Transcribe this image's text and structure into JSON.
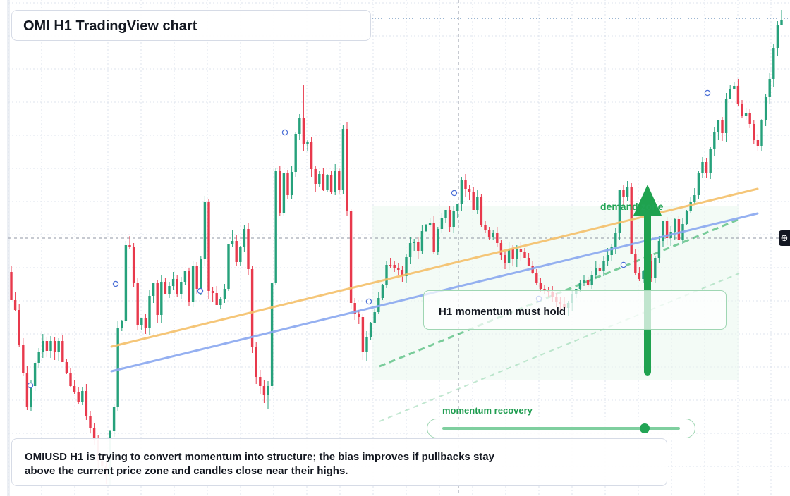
{
  "header": {
    "title": "OMI H1 TradingView chart"
  },
  "note": {
    "text": "OMIUSD H1 is trying to convert momentum into structure; the bias improves if pullbacks stay above the current price zone and candles close near their highs."
  },
  "callout": {
    "text": "H1 momentum must hold"
  },
  "zone": {
    "label": "demand zone"
  },
  "slider": {
    "label": "momentum recovery",
    "value": 0.88
  },
  "toolbar": {
    "crosshair_icon": "crosshair-plus-icon"
  },
  "colors": {
    "bull": "#26a17b",
    "bear": "#e8394c",
    "ma_fast": "#f5c06a",
    "ma_slow": "#8aa8f0",
    "accent_green": "#22a455",
    "zone_fill": "#eaf8ee"
  },
  "chart_data": {
    "type": "candlestick",
    "symbol": "OMIUSD",
    "timeframe": "H1",
    "grid": true,
    "ohlc": [
      [
        386,
        386,
        426,
        378
      ],
      [
        426,
        426,
        440,
        414
      ],
      [
        440,
        440,
        490,
        433
      ],
      [
        490,
        490,
        530,
        480
      ],
      [
        530,
        530,
        578,
        520
      ],
      [
        578,
        578,
        548,
        583
      ],
      [
        548,
        548,
        515,
        555
      ],
      [
        515,
        515,
        500,
        520
      ],
      [
        500,
        500,
        484,
        508
      ],
      [
        484,
        484,
        498,
        478
      ],
      [
        498,
        498,
        484,
        502
      ],
      [
        484,
        484,
        500,
        478
      ],
      [
        500,
        500,
        484,
        505
      ],
      [
        484,
        484,
        514,
        480
      ],
      [
        514,
        514,
        530,
        510
      ],
      [
        530,
        530,
        548,
        523
      ],
      [
        548,
        548,
        556,
        543
      ],
      [
        556,
        556,
        570,
        550
      ],
      [
        570,
        570,
        555,
        575
      ],
      [
        555,
        555,
        590,
        550
      ],
      [
        590,
        590,
        608,
        584
      ],
      [
        608,
        608,
        624,
        600
      ],
      [
        624,
        624,
        655,
        618
      ],
      [
        655,
        655,
        662,
        648
      ],
      [
        662,
        662,
        676,
        655
      ],
      [
        676,
        676,
        612,
        684
      ],
      [
        612,
        612,
        578,
        620
      ],
      [
        578,
        578,
        465,
        583
      ],
      [
        465,
        465,
        456,
        470
      ],
      [
        456,
        456,
        348,
        351
      ],
      [
        348,
        348,
        350,
        335
      ],
      [
        350,
        350,
        402,
        345
      ],
      [
        402,
        402,
        462,
        396
      ],
      [
        462,
        462,
        451,
        467
      ],
      [
        451,
        451,
        466,
        446
      ],
      [
        466,
        466,
        420,
        471
      ],
      [
        420,
        420,
        402,
        426
      ],
      [
        402,
        402,
        447,
        398
      ],
      [
        447,
        447,
        400,
        452
      ],
      [
        400,
        400,
        418,
        395
      ],
      [
        418,
        418,
        406,
        423
      ],
      [
        406,
        406,
        396,
        412
      ],
      [
        396,
        396,
        418,
        390
      ],
      [
        418,
        418,
        400,
        425
      ],
      [
        400,
        400,
        385,
        405
      ],
      [
        385,
        385,
        429,
        380
      ],
      [
        429,
        429,
        378,
        433
      ],
      [
        378,
        378,
        410,
        372
      ],
      [
        410,
        410,
        368,
        415
      ],
      [
        368,
        368,
        287,
        286
      ],
      [
        287,
        287,
        413,
        283
      ],
      [
        413,
        413,
        416,
        408
      ],
      [
        416,
        416,
        433,
        410
      ],
      [
        433,
        433,
        424,
        438
      ],
      [
        424,
        424,
        410,
        430
      ],
      [
        410,
        410,
        346,
        405
      ],
      [
        346,
        346,
        342,
        326
      ],
      [
        342,
        342,
        372,
        337
      ],
      [
        372,
        372,
        350,
        377
      ],
      [
        350,
        350,
        325,
        345
      ],
      [
        325,
        325,
        382,
        320
      ],
      [
        382,
        382,
        492,
        378
      ],
      [
        492,
        492,
        535,
        486
      ],
      [
        535,
        535,
        548,
        530
      ],
      [
        548,
        548,
        560,
        540
      ],
      [
        560,
        560,
        548,
        580
      ],
      [
        548,
        548,
        402,
        554
      ],
      [
        402,
        402,
        243,
        399
      ],
      [
        243,
        243,
        303,
        240
      ],
      [
        303,
        303,
        246,
        300
      ],
      [
        246,
        246,
        277,
        242
      ],
      [
        277,
        277,
        244,
        250
      ],
      [
        244,
        244,
        190,
        248
      ],
      [
        190,
        190,
        168,
        184
      ],
      [
        168,
        168,
        205,
        120
      ],
      [
        205,
        205,
        202,
        198
      ],
      [
        202,
        202,
        240,
        198
      ],
      [
        240,
        240,
        261,
        235
      ],
      [
        261,
        261,
        247,
        266
      ],
      [
        247,
        247,
        270,
        240
      ],
      [
        270,
        270,
        248,
        265
      ],
      [
        248,
        248,
        272,
        243
      ],
      [
        272,
        272,
        242,
        277
      ],
      [
        242,
        242,
        270,
        238
      ],
      [
        270,
        270,
        183,
        265
      ],
      [
        183,
        183,
        300,
        178
      ],
      [
        300,
        300,
        430,
        305
      ],
      [
        430,
        430,
        445,
        425
      ],
      [
        445,
        445,
        450,
        440
      ],
      [
        450,
        450,
        500,
        445
      ],
      [
        500,
        500,
        478,
        510
      ],
      [
        478,
        478,
        458,
        483
      ],
      [
        458,
        458,
        443,
        452
      ],
      [
        443,
        443,
        423,
        438
      ],
      [
        423,
        423,
        405,
        418
      ],
      [
        405,
        405,
        376,
        398
      ],
      [
        376,
        376,
        376,
        380
      ],
      [
        376,
        376,
        380,
        371
      ],
      [
        380,
        380,
        383,
        375
      ],
      [
        383,
        383,
        392,
        377
      ],
      [
        392,
        392,
        365,
        398
      ],
      [
        365,
        365,
        345,
        360
      ],
      [
        345,
        345,
        343,
        339
      ],
      [
        343,
        343,
        356,
        337
      ],
      [
        356,
        356,
        328,
        360
      ],
      [
        328,
        328,
        320,
        323
      ],
      [
        320,
        320,
        316,
        314
      ],
      [
        316,
        316,
        357,
        311
      ],
      [
        357,
        357,
        325,
        362
      ],
      [
        325,
        325,
        310,
        320
      ],
      [
        310,
        310,
        298,
        305
      ],
      [
        298,
        298,
        322,
        293
      ],
      [
        322,
        322,
        300,
        327
      ],
      [
        300,
        300,
        290,
        295
      ],
      [
        290,
        290,
        256,
        285
      ],
      [
        256,
        256,
        268,
        250
      ],
      [
        268,
        268,
        272,
        262
      ],
      [
        272,
        272,
        298,
        266
      ],
      [
        298,
        298,
        280,
        304
      ],
      [
        280,
        280,
        320,
        275
      ],
      [
        320,
        320,
        327,
        314
      ],
      [
        327,
        327,
        336,
        322
      ],
      [
        336,
        336,
        330,
        340
      ],
      [
        330,
        330,
        345,
        325
      ],
      [
        345,
        345,
        362,
        340
      ],
      [
        362,
        362,
        374,
        356
      ],
      [
        374,
        374,
        353,
        380
      ],
      [
        353,
        353,
        368,
        348
      ],
      [
        368,
        368,
        354,
        373
      ],
      [
        354,
        354,
        358,
        348
      ],
      [
        358,
        358,
        366,
        352
      ],
      [
        366,
        366,
        377,
        362
      ],
      [
        377,
        377,
        387,
        370
      ],
      [
        387,
        387,
        402,
        382
      ],
      [
        402,
        402,
        410,
        396
      ],
      [
        410,
        410,
        412,
        404
      ],
      [
        412,
        412,
        415,
        407
      ],
      [
        415,
        415,
        422,
        410
      ],
      [
        422,
        422,
        428,
        416
      ],
      [
        428,
        428,
        432,
        422
      ],
      [
        432,
        432,
        437,
        426
      ],
      [
        437,
        437,
        430,
        442
      ],
      [
        430,
        430,
        418,
        435
      ],
      [
        418,
        418,
        410,
        423
      ],
      [
        410,
        410,
        402,
        415
      ],
      [
        402,
        402,
        398,
        406
      ],
      [
        398,
        398,
        405,
        393
      ],
      [
        405,
        405,
        390,
        410
      ],
      [
        390,
        390,
        380,
        395
      ],
      [
        380,
        380,
        385,
        375
      ],
      [
        385,
        385,
        370,
        390
      ],
      [
        370,
        370,
        362,
        375
      ],
      [
        362,
        362,
        350,
        368
      ],
      [
        350,
        350,
        330,
        355
      ],
      [
        330,
        330,
        269,
        325
      ],
      [
        269,
        269,
        280,
        262
      ],
      [
        280,
        280,
        265,
        285
      ],
      [
        265,
        265,
        360,
        260
      ],
      [
        360,
        360,
        388,
        354
      ],
      [
        388,
        388,
        396,
        382
      ],
      [
        396,
        396,
        385,
        402
      ],
      [
        385,
        385,
        371,
        390
      ],
      [
        371,
        371,
        394,
        366
      ],
      [
        394,
        394,
        366,
        399
      ],
      [
        366,
        366,
        342,
        360
      ],
      [
        342,
        342,
        313,
        336
      ],
      [
        313,
        313,
        338,
        308
      ],
      [
        338,
        338,
        329,
        343
      ],
      [
        329,
        329,
        311,
        324
      ],
      [
        311,
        311,
        341,
        306
      ],
      [
        341,
        341,
        318,
        346
      ],
      [
        318,
        318,
        300,
        312
      ],
      [
        300,
        300,
        286,
        294
      ],
      [
        286,
        286,
        277,
        281
      ],
      [
        277,
        277,
        246,
        270
      ],
      [
        246,
        246,
        230,
        240
      ],
      [
        230,
        230,
        246,
        224
      ],
      [
        246,
        246,
        212,
        219
      ],
      [
        212,
        212,
        188,
        205
      ],
      [
        188,
        188,
        171,
        181
      ],
      [
        171,
        171,
        189,
        176
      ],
      [
        189,
        189,
        141,
        136
      ],
      [
        141,
        141,
        126,
        120
      ],
      [
        126,
        126,
        122,
        118
      ],
      [
        122,
        122,
        148,
        117
      ],
      [
        148,
        148,
        165,
        142
      ],
      [
        165,
        165,
        160,
        170
      ],
      [
        160,
        160,
        176,
        155
      ],
      [
        176,
        176,
        198,
        170
      ],
      [
        198,
        198,
        207,
        192
      ],
      [
        207,
        207,
        170,
        212
      ],
      [
        170,
        170,
        138,
        165
      ],
      [
        138,
        138,
        112,
        105
      ],
      [
        112,
        112,
        68,
        62
      ],
      [
        68,
        68,
        36,
        30
      ],
      [
        36,
        36,
        28,
        14
      ]
    ],
    "moving_averages": [
      {
        "color": "#f5c06a",
        "from": [
          158,
          492
        ],
        "to": [
          1074,
          268
        ]
      },
      {
        "color": "#8aa8f0",
        "from": [
          158,
          527
        ],
        "to": [
          1074,
          303
        ]
      }
    ],
    "crosshair": {
      "x": 650,
      "y": 338
    }
  }
}
